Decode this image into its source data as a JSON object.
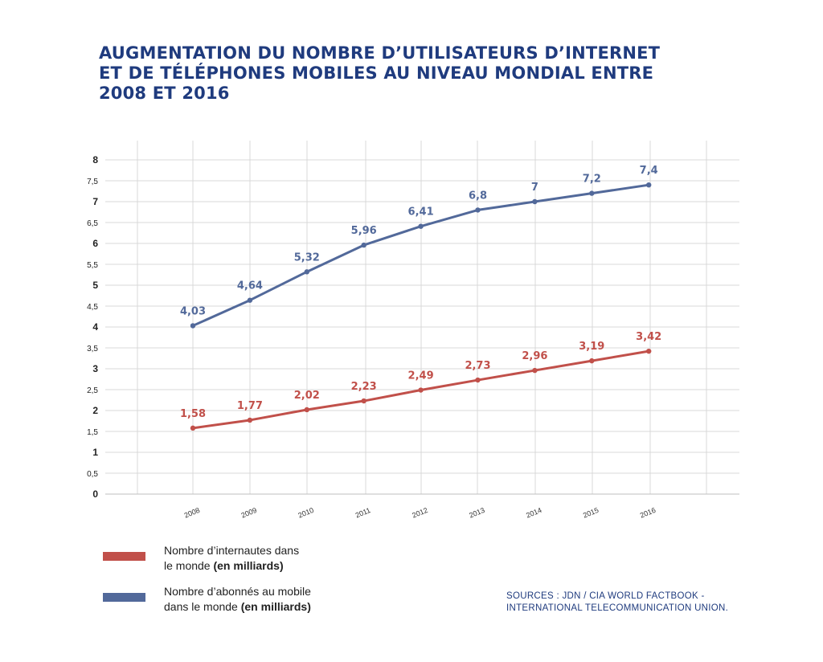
{
  "title": {
    "lines": [
      "AUGMENTATION DU NOMBRE D’UTILISATEURS D’INTERNET",
      "ET DE TÉLÉPHONES MOBILES AU NIVEAU MONDIAL ENTRE",
      "2008 ET 2016"
    ]
  },
  "chart_data": {
    "type": "line",
    "title": "AUGMENTATION DU NOMBRE D’UTILISATEURS D’INTERNET ET DE TÉLÉPHONES MOBILES AU NIVEAU MONDIAL ENTRE 2008 ET 2016",
    "x": [
      "2008",
      "2009",
      "2010",
      "2011",
      "2012",
      "2013",
      "2014",
      "2015",
      "2016"
    ],
    "ylim": [
      0,
      8
    ],
    "y_ticks": [
      0,
      0.5,
      1,
      1.5,
      2,
      2.5,
      3,
      3.5,
      4,
      4.5,
      5,
      5.5,
      6,
      6.5,
      7,
      7.5,
      8
    ],
    "y_tick_labels": [
      "0",
      "0,5",
      "1",
      "1,5",
      "2",
      "2,5",
      "3",
      "3,5",
      "4",
      "4,5",
      "5",
      "5,5",
      "6",
      "6,5",
      "7",
      "7,5",
      "8"
    ],
    "grid": true,
    "series": [
      {
        "name": "Nombre d’internautes dans le monde (en milliards)",
        "color": "#c1504a",
        "values": [
          1.58,
          1.77,
          2.02,
          2.23,
          2.49,
          2.73,
          2.96,
          3.19,
          3.42
        ],
        "labels": [
          "1,58",
          "1,77",
          "2,02",
          "2,23",
          "2,49",
          "2,73",
          "2,96",
          "3,19",
          "3,42"
        ]
      },
      {
        "name": "Nombre d’abonnés au mobile dans le monde (en milliards)",
        "color": "#52699a",
        "values": [
          4.03,
          4.64,
          5.32,
          5.96,
          6.41,
          6.8,
          7.0,
          7.2,
          7.4
        ],
        "labels": [
          "4,03",
          "4,64",
          "5,32",
          "5,96",
          "6,41",
          "6,8",
          "7",
          "7,2",
          "7,4"
        ]
      }
    ]
  },
  "legend": {
    "items": [
      {
        "line1": "Nombre d’internautes dans",
        "line2_plain": "le monde ",
        "line2_bold": "(en milliards)",
        "color": "#c1504a"
      },
      {
        "line1": "Nombre d’abonnés au mobile",
        "line2_plain": "dans le monde ",
        "line2_bold": "(en milliards)",
        "color": "#52699a"
      }
    ]
  },
  "sources": {
    "line1": "SOURCES : JDN / CIA WORLD FACTBOOK -",
    "line2": "INTERNATIONAL TELECOMMUNICATION UNION."
  }
}
